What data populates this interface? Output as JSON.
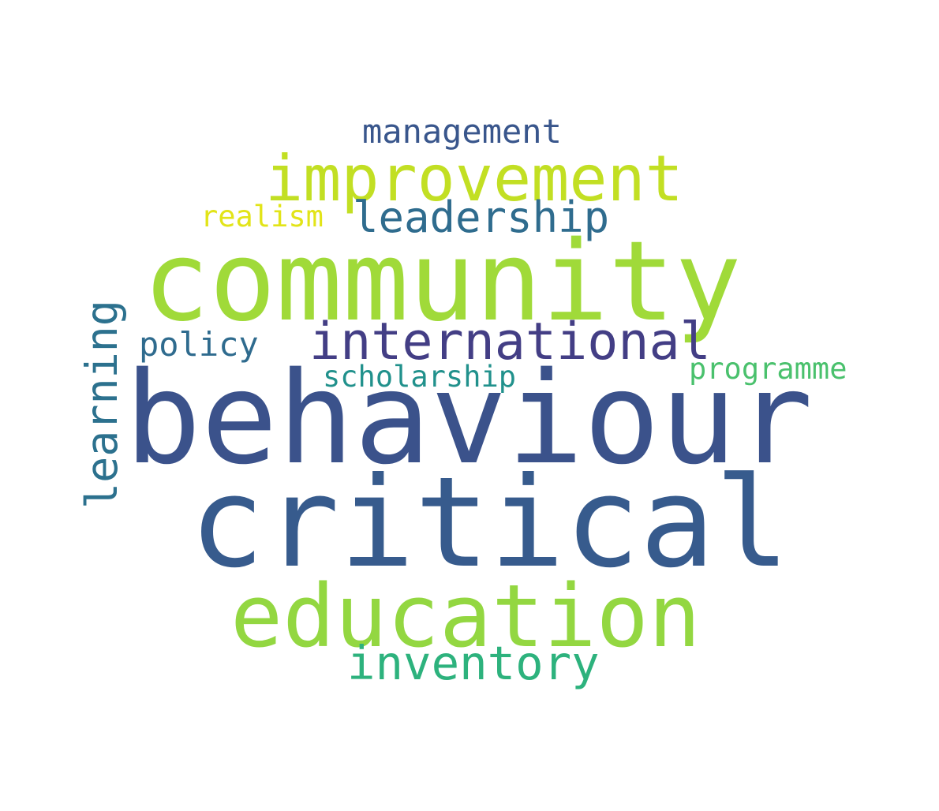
{
  "words": [
    {
      "text": "behaviour",
      "color": "#3b528b"
    },
    {
      "text": "critical",
      "color": "#375b8d"
    },
    {
      "text": "community",
      "color": "#a0da39"
    },
    {
      "text": "education",
      "color": "#93d741"
    },
    {
      "text": "improvement",
      "color": "#c2df23"
    },
    {
      "text": "international",
      "color": "#433e85"
    },
    {
      "text": "inventory",
      "color": "#2db27d"
    },
    {
      "text": "leadership",
      "color": "#2f6c8e"
    },
    {
      "text": "learning",
      "color": "#2c718e"
    },
    {
      "text": "management",
      "color": "#39568c"
    },
    {
      "text": "policy",
      "color": "#2f6b8e"
    },
    {
      "text": "programme",
      "color": "#4ac16d"
    },
    {
      "text": "scholarship",
      "color": "#21918c"
    },
    {
      "text": "realism",
      "color": "#e2e418"
    }
  ]
}
